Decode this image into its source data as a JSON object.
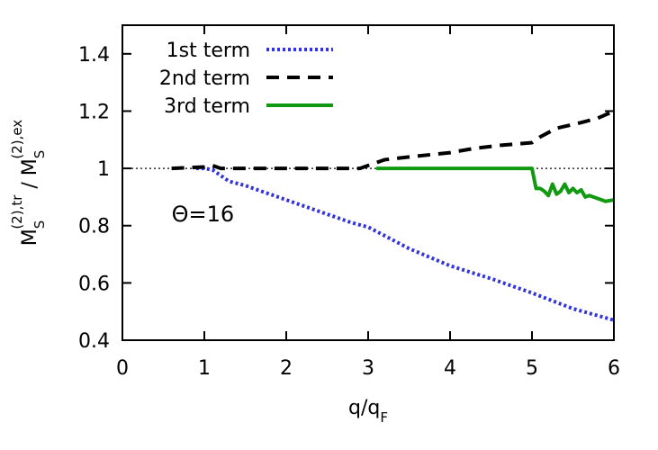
{
  "chart_data": {
    "type": "line",
    "xlabel": {
      "main": "q/q",
      "sub": "F"
    },
    "ylabel": {
      "base1": "M",
      "sub1": "S",
      "sup1": "(2),tr",
      "sep": " / ",
      "base2": "M",
      "sub2": "S",
      "sup2": "(2),ex"
    },
    "xlim": [
      0,
      6
    ],
    "ylim": [
      0.4,
      1.5
    ],
    "xticks": [
      0,
      1,
      2,
      3,
      4,
      5,
      6
    ],
    "xtick_labels": [
      "0",
      "1",
      "2",
      "3",
      "4",
      "5",
      "6"
    ],
    "yticks": [
      0.4,
      0.6,
      0.8,
      1.0,
      1.2,
      1.4
    ],
    "ytick_labels": [
      "0.4",
      "0.6",
      "0.8",
      "1",
      "1.2",
      "1.4"
    ],
    "reference_line": {
      "y": 1.0,
      "style": "dotted",
      "color": "#000000"
    },
    "annotation": {
      "text": "Θ=16",
      "x": 0.6,
      "y": 0.84
    },
    "legend_position": "top-left",
    "series": [
      {
        "name": "1st term",
        "style": "dotted",
        "color": "#3333dd",
        "x": [
          0.9,
          1.0,
          1.1,
          1.2,
          1.3,
          1.5,
          2.0,
          2.5,
          2.8,
          3.0,
          3.5,
          4.0,
          4.5,
          5.0,
          5.5,
          6.0
        ],
        "y": [
          1.0,
          1.0,
          0.995,
          0.975,
          0.955,
          0.94,
          0.89,
          0.84,
          0.81,
          0.795,
          0.72,
          0.66,
          0.615,
          0.565,
          0.51,
          0.47
        ]
      },
      {
        "name": "2nd term",
        "style": "dashed",
        "color": "#000000",
        "x": [
          0.6,
          1.0,
          1.1,
          1.2,
          2.0,
          2.9,
          3.0,
          3.2,
          3.5,
          4.0,
          4.3,
          4.6,
          5.0,
          5.1,
          5.3,
          5.6,
          5.8,
          6.0
        ],
        "y": [
          1.0,
          1.005,
          1.01,
          1.0,
          1.0,
          1.0,
          1.01,
          1.03,
          1.04,
          1.055,
          1.07,
          1.08,
          1.09,
          1.11,
          1.14,
          1.16,
          1.175,
          1.2
        ]
      },
      {
        "name": "3rd term",
        "style": "solid",
        "color": "#119911",
        "x": [
          3.1,
          3.5,
          4.0,
          4.5,
          5.0,
          5.05,
          5.1,
          5.15,
          5.2,
          5.25,
          5.3,
          5.35,
          5.4,
          5.45,
          5.5,
          5.55,
          5.6,
          5.65,
          5.7,
          5.8,
          5.9,
          6.0
        ],
        "y": [
          1.0,
          1.0,
          1.0,
          1.0,
          1.0,
          0.93,
          0.93,
          0.92,
          0.905,
          0.945,
          0.91,
          0.92,
          0.945,
          0.915,
          0.93,
          0.915,
          0.925,
          0.9,
          0.905,
          0.895,
          0.885,
          0.89
        ]
      }
    ]
  }
}
